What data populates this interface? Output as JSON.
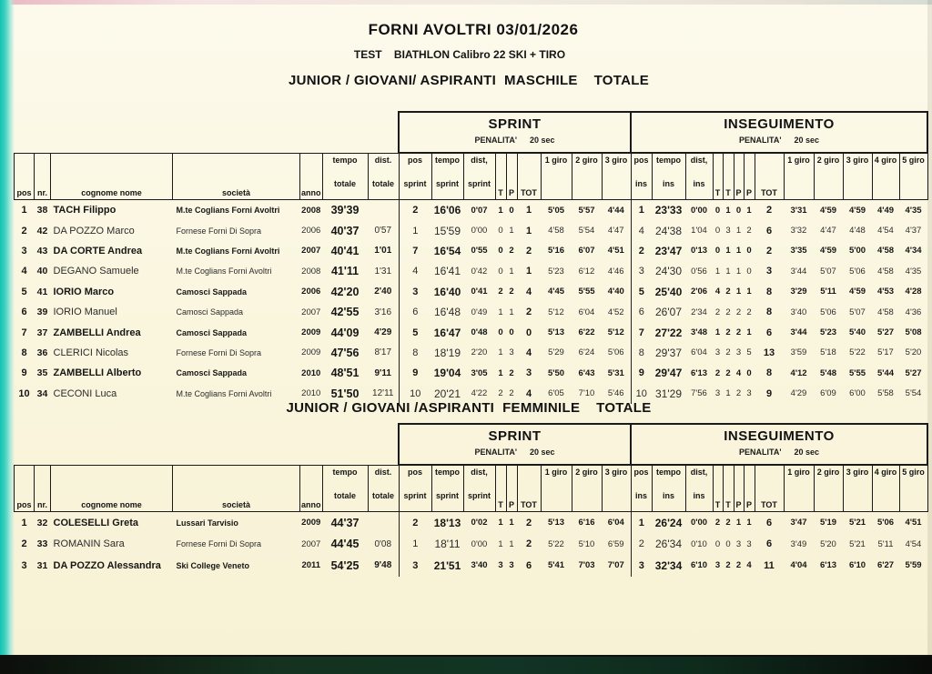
{
  "header": {
    "title": "FORNI AVOLTRI 03/01/2026",
    "subtitle": "TEST    BIATHLON Calibro 22 SKI + TIRO"
  },
  "columns": {
    "left": [
      {
        "key": "pos",
        "label": "pos"
      },
      {
        "key": "nr",
        "label": "nr."
      },
      {
        "key": "cognome_nome",
        "label": "cognome nome"
      },
      {
        "key": "societa",
        "label": "società"
      },
      {
        "key": "anno",
        "label": "anno"
      },
      {
        "key": "tempo_totale",
        "label": "tempo|totale"
      },
      {
        "key": "dist_totale",
        "label": "dist.|totale"
      }
    ],
    "sprint": {
      "title": "SPRINT",
      "penalty_label": "PENALITA'",
      "penalty_value": "20 sec",
      "cols": [
        {
          "label": "pos|sprint"
        },
        {
          "label": "tempo|sprint"
        },
        {
          "label": "dist,|sprint"
        },
        {
          "label": "T"
        },
        {
          "label": "P"
        },
        {
          "label": "TOT"
        },
        {
          "label": "1 giro"
        },
        {
          "label": "2 giro"
        },
        {
          "label": "3 giro"
        }
      ]
    },
    "inseguimento": {
      "title": "INSEGUIMENTO",
      "penalty_label": "PENALITA'",
      "penalty_value": "20 sec",
      "cols": [
        {
          "label": "pos|ins"
        },
        {
          "label": "tempo|ins"
        },
        {
          "label": "dist,|ins"
        },
        {
          "label": "T"
        },
        {
          "label": "T"
        },
        {
          "label": "P"
        },
        {
          "label": "P"
        },
        {
          "label": "TOT"
        },
        {
          "label": "1 giro"
        },
        {
          "label": "2 giro"
        },
        {
          "label": "3 giro"
        },
        {
          "label": "4 giro"
        },
        {
          "label": "5 giro"
        }
      ]
    }
  },
  "sections": [
    {
      "heading": "JUNIOR / GIOVANI/ ASPIRANTI  MASCHILE    TOTALE",
      "rows": [
        [
          "1",
          "38",
          "TACH Filippo",
          "M.te Coglians Forni Avoltri",
          "2008",
          "39'39",
          "",
          "2",
          "16'06",
          "0'07",
          "1",
          "0",
          "1",
          "5'05",
          "5'57",
          "4'44",
          "1",
          "23'33",
          "0'00",
          "0",
          "1",
          "0",
          "1",
          "2",
          "3'31",
          "4'59",
          "4'59",
          "4'49",
          "4'35"
        ],
        [
          "2",
          "42",
          "DA POZZO Marco",
          "Fornese Forni Di Sopra",
          "2006",
          "40'37",
          "0'57",
          "1",
          "15'59",
          "0'00",
          "0",
          "1",
          "1",
          "4'58",
          "5'54",
          "4'47",
          "4",
          "24'38",
          "1'04",
          "0",
          "3",
          "1",
          "2",
          "6",
          "3'32",
          "4'47",
          "4'48",
          "4'54",
          "4'37"
        ],
        [
          "3",
          "43",
          "DA CORTE Andrea",
          "M.te Coglians Forni Avoltri",
          "2007",
          "40'41",
          "1'01",
          "7",
          "16'54",
          "0'55",
          "0",
          "2",
          "2",
          "5'16",
          "6'07",
          "4'51",
          "2",
          "23'47",
          "0'13",
          "0",
          "1",
          "1",
          "0",
          "2",
          "3'35",
          "4'59",
          "5'00",
          "4'58",
          "4'34"
        ],
        [
          "4",
          "40",
          "DEGANO Samuele",
          "M.te Coglians Forni Avoltri",
          "2008",
          "41'11",
          "1'31",
          "4",
          "16'41",
          "0'42",
          "0",
          "1",
          "1",
          "5'23",
          "6'12",
          "4'46",
          "3",
          "24'30",
          "0'56",
          "1",
          "1",
          "1",
          "0",
          "3",
          "3'44",
          "5'07",
          "5'06",
          "4'58",
          "4'35"
        ],
        [
          "5",
          "41",
          "IORIO Marco",
          "Camosci Sappada",
          "2006",
          "42'20",
          "2'40",
          "3",
          "16'40",
          "0'41",
          "2",
          "2",
          "4",
          "4'45",
          "5'55",
          "4'40",
          "5",
          "25'40",
          "2'06",
          "4",
          "2",
          "1",
          "1",
          "8",
          "3'29",
          "5'11",
          "4'59",
          "4'53",
          "4'28"
        ],
        [
          "6",
          "39",
          "IORIO Manuel",
          "Camosci Sappada",
          "2007",
          "42'55",
          "3'16",
          "6",
          "16'48",
          "0'49",
          "1",
          "1",
          "2",
          "5'12",
          "6'04",
          "4'52",
          "6",
          "26'07",
          "2'34",
          "2",
          "2",
          "2",
          "2",
          "8",
          "3'40",
          "5'06",
          "5'07",
          "4'58",
          "4'36"
        ],
        [
          "7",
          "37",
          "ZAMBELLI Andrea",
          "Camosci Sappada",
          "2009",
          "44'09",
          "4'29",
          "5",
          "16'47",
          "0'48",
          "0",
          "0",
          "0",
          "5'13",
          "6'22",
          "5'12",
          "7",
          "27'22",
          "3'48",
          "1",
          "2",
          "2",
          "1",
          "6",
          "3'44",
          "5'23",
          "5'40",
          "5'27",
          "5'08"
        ],
        [
          "8",
          "36",
          "CLERICI Nicolas",
          "Fornese Forni Di Sopra",
          "2009",
          "47'56",
          "8'17",
          "8",
          "18'19",
          "2'20",
          "1",
          "3",
          "4",
          "5'29",
          "6'24",
          "5'06",
          "8",
          "29'37",
          "6'04",
          "3",
          "2",
          "3",
          "5",
          "13",
          "3'59",
          "5'18",
          "5'22",
          "5'17",
          "5'20"
        ],
        [
          "9",
          "35",
          "ZAMBELLI Alberto",
          "Camosci Sappada",
          "2010",
          "48'51",
          "9'11",
          "9",
          "19'04",
          "3'05",
          "1",
          "2",
          "3",
          "5'50",
          "6'43",
          "5'31",
          "9",
          "29'47",
          "6'13",
          "2",
          "2",
          "4",
          "0",
          "8",
          "4'12",
          "5'48",
          "5'55",
          "5'44",
          "5'27"
        ],
        [
          "10",
          "34",
          "CECONI Luca",
          "M.te Coglians Forni Avoltri",
          "2010",
          "51'50",
          "12'11",
          "10",
          "20'21",
          "4'22",
          "2",
          "2",
          "4",
          "6'05",
          "7'10",
          "5'46",
          "10",
          "31'29",
          "7'56",
          "3",
          "1",
          "2",
          "3",
          "9",
          "4'29",
          "6'09",
          "6'00",
          "5'58",
          "5'54"
        ]
      ]
    },
    {
      "heading": "JUNIOR / GIOVANI /ASPIRANTI  FEMMINILE    TOTALE",
      "rows": [
        [
          "1",
          "32",
          "COLESELLI Greta",
          "Lussari Tarvisio",
          "2009",
          "44'37",
          "",
          "2",
          "18'13",
          "0'02",
          "1",
          "1",
          "2",
          "5'13",
          "6'16",
          "6'04",
          "1",
          "26'24",
          "0'00",
          "2",
          "2",
          "1",
          "1",
          "6",
          "3'47",
          "5'19",
          "5'21",
          "5'06",
          "4'51"
        ],
        [
          "2",
          "33",
          "ROMANIN Sara",
          "Fornese Forni Di Sopra",
          "2007",
          "44'45",
          "0'08",
          "1",
          "18'11",
          "0'00",
          "1",
          "1",
          "2",
          "5'22",
          "5'10",
          "6'59",
          "2",
          "26'34",
          "0'10",
          "0",
          "0",
          "3",
          "3",
          "6",
          "3'49",
          "5'20",
          "5'21",
          "5'11",
          "4'54"
        ],
        [
          "3",
          "31",
          "DA POZZO Alessandra",
          "Ski College Veneto",
          "2011",
          "54'25",
          "9'48",
          "3",
          "21'51",
          "3'40",
          "3",
          "3",
          "6",
          "5'41",
          "7'03",
          "7'07",
          "3",
          "32'34",
          "6'10",
          "3",
          "2",
          "2",
          "4",
          "11",
          "4'04",
          "6'13",
          "6'10",
          "6'27",
          "5'59"
        ]
      ]
    }
  ]
}
